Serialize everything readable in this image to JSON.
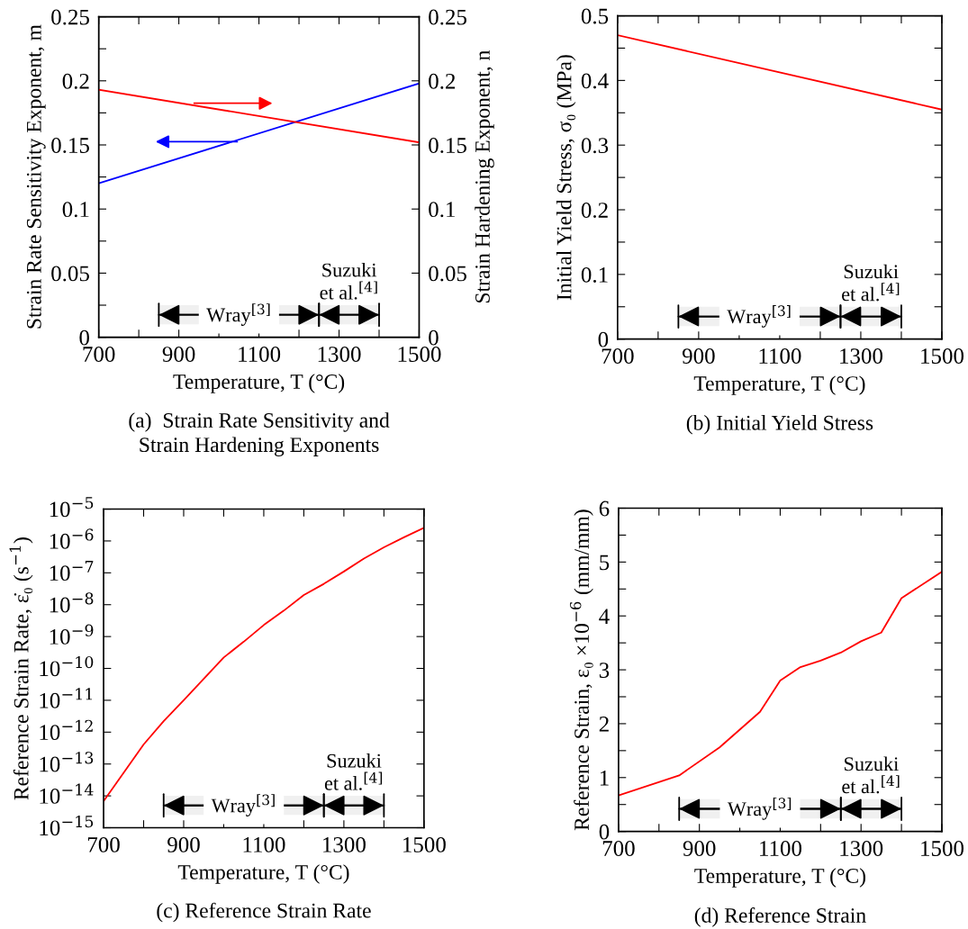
{
  "chart_data": [
    {
      "type": "line",
      "title": "(a)  Strain Rate Sensitivity and\nStrain Hardening Exponents",
      "xlabel": "Temperature, T (°C)",
      "ylabel": "Strain Rate Sensitivity Exponent, m",
      "y2label": "Strain Hardening Exponent, n",
      "x": [
        700,
        1500
      ],
      "series": [
        {
          "color": "#0000ff",
          "values": [
            0.12,
            0.198
          ]
        },
        {
          "color": "#ff0000",
          "values": [
            0.193,
            0.152
          ],
          "axis": "y2"
        }
      ],
      "xlim": [
        700,
        1500
      ],
      "xticks": [
        700,
        {
          "value": 800,
          "label": null
        },
        900,
        {
          "value": 1000,
          "label": null
        },
        1100,
        {
          "value": 1200,
          "label": null
        },
        1300,
        {
          "value": 1400,
          "label": null
        },
        1500
      ],
      "ylim": [
        0,
        0.25
      ],
      "yticks": [
        0,
        {
          "value": 0.025,
          "label": null
        },
        0.05,
        {
          "value": 0.075,
          "label": null
        },
        0.1,
        {
          "value": 0.125,
          "label": null
        },
        0.15,
        {
          "value": 0.175,
          "label": null
        },
        0.2,
        {
          "value": 0.225,
          "label": null
        },
        0.25
      ],
      "y2lim": [
        0,
        0.25
      ],
      "y2ticks": [
        0,
        0.05,
        0.1,
        0.15,
        0.2,
        0.25
      ],
      "bands": [
        {
          "axis": "x",
          "from": 850,
          "to": 1250,
          "label": "Wray$^{[3]}$"
        },
        {
          "axis": "x",
          "from": 1250,
          "to": 1400,
          "label": "Suzuki\net al.$^{[4]}$"
        }
      ]
    },
    {
      "type": "line",
      "title": "(b) Initial Yield Stress",
      "xlabel": "Temperature, T (°C)",
      "ylabel": "Initial Yield Stress, σ₀ (MPa)",
      "x": [
        700,
        1500
      ],
      "series": [
        {
          "color": "#ff0000",
          "values": [
            0.47,
            0.355
          ]
        }
      ],
      "xlim": [
        700,
        1500
      ],
      "xticks": [
        700,
        {
          "value": 800,
          "label": null
        },
        900,
        {
          "value": 1000,
          "label": null
        },
        1100,
        {
          "value": 1200,
          "label": null
        },
        1300,
        {
          "value": 1400,
          "label": null
        },
        1500
      ],
      "ylim": [
        0,
        0.5
      ],
      "yticks": [
        0,
        {
          "value": 0.05,
          "label": null
        },
        0.1,
        {
          "value": 0.15,
          "label": null
        },
        0.2,
        {
          "value": 0.25,
          "label": null
        },
        0.3,
        {
          "value": 0.35,
          "label": null
        },
        0.4,
        {
          "value": 0.45,
          "label": null
        },
        0.5
      ],
      "bands": [
        {
          "axis": "x",
          "from": 850,
          "to": 1250,
          "label": "Wray$^{[3]}$"
        },
        {
          "axis": "x",
          "from": 1250,
          "to": 1400,
          "label": "Suzuki\net al.$^{[4]}$"
        }
      ]
    },
    {
      "type": "line",
      "title": "(c) Reference Strain Rate",
      "xlabel": "Temperature, T (°C)",
      "ylabel": "Reference Strain Rate, ε̇₀ (s$^{−1}$)",
      "log": "y",
      "x": [
        700,
        800,
        850,
        900,
        950,
        1000,
        1050,
        1100,
        1150,
        1200,
        1250,
        1300,
        1350,
        1400,
        1450,
        1500
      ],
      "series": [
        {
          "color": "#ff0000",
          "values": [
            6.8e-15,
            4.1e-13,
            2.2e-12,
            1e-11,
            4.7e-11,
            2.2e-10,
            6.9e-10,
            2.3e-09,
            6.5e-09,
            2e-08,
            4.5e-08,
            1.1e-07,
            2.8e-07,
            6.3e-07,
            1.3e-06,
            2.6e-06
          ]
        }
      ],
      "xlim": [
        700,
        1500
      ],
      "xticks": [
        700,
        {
          "value": 800,
          "label": null
        },
        900,
        {
          "value": 1000,
          "label": null
        },
        1100,
        {
          "value": 1200,
          "label": null
        },
        1300,
        {
          "value": 1400,
          "label": null
        },
        1500
      ],
      "ylim": [
        1e-15,
        1e-05
      ],
      "yticks": [
        {
          "value": 1e-15,
          "label": "10$^{−15}$"
        },
        {
          "value": 1e-14,
          "label": "10$^{−14}$"
        },
        {
          "value": 1e-13,
          "label": "10$^{−13}$"
        },
        {
          "value": 1e-12,
          "label": "10$^{−12}$"
        },
        {
          "value": 1e-11,
          "label": "10$^{−11}$"
        },
        {
          "value": 1e-10,
          "label": "10$^{−10}$"
        },
        {
          "value": 1e-09,
          "label": "10$^{−9}$"
        },
        {
          "value": 1e-08,
          "label": "10$^{−8}$"
        },
        {
          "value": 1e-07,
          "label": "10$^{−7}$"
        },
        {
          "value": 1e-06,
          "label": "10$^{−6}$"
        },
        {
          "value": 1e-05,
          "label": "10$^{−5}$"
        }
      ],
      "bands": [
        {
          "axis": "x",
          "from": 850,
          "to": 1250,
          "label": "Wray$^{[3]}$"
        },
        {
          "axis": "x",
          "from": 1250,
          "to": 1400,
          "label": "Suzuki\net al.$^{[4]}$"
        }
      ]
    },
    {
      "type": "line",
      "title": "(d) Reference Strain",
      "xlabel": "Temperature, T (°C)",
      "ylabel": "Reference Strain, ε₀ ×10$^{−6}$ (mm/mm)",
      "x": [
        700,
        850,
        950,
        1050,
        1100,
        1150,
        1200,
        1250,
        1300,
        1350,
        1400,
        1500
      ],
      "series": [
        {
          "color": "#ff0000",
          "values": [
            0.67,
            1.04,
            1.56,
            2.22,
            2.8,
            3.05,
            3.17,
            3.32,
            3.53,
            3.69,
            4.33,
            4.82
          ]
        }
      ],
      "xlim": [
        700,
        1500
      ],
      "xticks": [
        700,
        {
          "value": 800,
          "label": null
        },
        900,
        {
          "value": 1000,
          "label": null
        },
        1100,
        {
          "value": 1200,
          "label": null
        },
        1300,
        {
          "value": 1400,
          "label": null
        },
        1500
      ],
      "ylim": [
        0,
        6
      ],
      "yticks": [
        0,
        {
          "value": 0.5,
          "label": null
        },
        1,
        {
          "value": 1.5,
          "label": null
        },
        2,
        {
          "value": 2.5,
          "label": null
        },
        3,
        {
          "value": 3.5,
          "label": null
        },
        4,
        {
          "value": 4.5,
          "label": null
        },
        5,
        {
          "value": 5.5,
          "label": null
        },
        6
      ],
      "bands": [
        {
          "axis": "x",
          "from": 850,
          "to": 1250,
          "label": "Wray$^{[3]}$"
        },
        {
          "axis": "x",
          "from": 1250,
          "to": 1400,
          "label": "Suzuki\net al.$^{[4]}$"
        }
      ]
    }
  ]
}
